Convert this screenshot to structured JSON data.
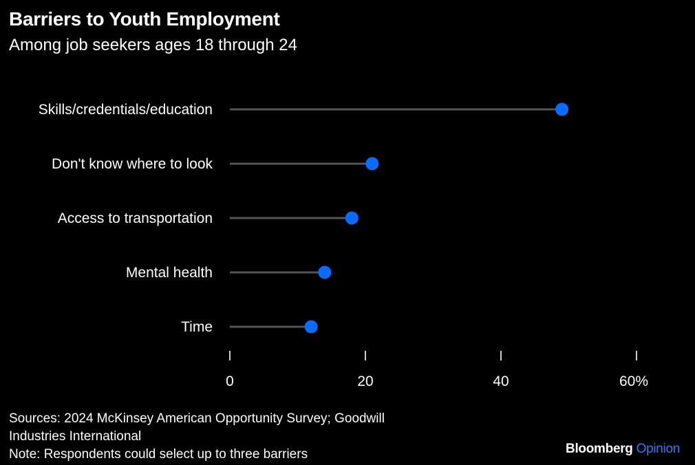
{
  "header": {
    "title": "Barriers to Youth Employment",
    "subtitle": "Among job seekers ages 18 through 24"
  },
  "chart_data": {
    "type": "lollipop",
    "categories": [
      "Skills/credentials/education",
      "Don't know where to look",
      "Access to transportation",
      "Mental health",
      "Time"
    ],
    "values": [
      49,
      21,
      18,
      14,
      12
    ],
    "xlim": [
      0,
      60
    ],
    "x_ticks": [
      0,
      20,
      40,
      60
    ],
    "x_tick_labels": [
      "0",
      "20",
      "40",
      "60%"
    ],
    "colors": {
      "dot": "#0a6cff",
      "stem": "#555555",
      "axis": "#cccccc"
    }
  },
  "footer": {
    "sources_line1": "Sources: 2024 McKinsey American Opportunity Survey; Goodwill",
    "sources_line2": "Industries International",
    "note": "Note: Respondents could select up to three barriers"
  },
  "brand": {
    "name": "Bloomberg",
    "section": "Opinion"
  }
}
